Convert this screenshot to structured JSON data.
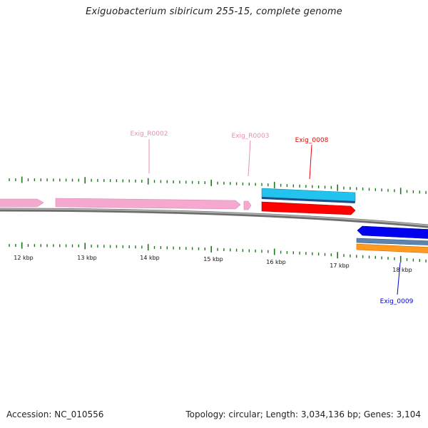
{
  "title": "Exiguobacterium sibiricum 255-15, complete genome",
  "accession": "Accession: NC_010556",
  "summary": "Topology: circular; Length: 3,034,136 bp; Genes: 3,104",
  "colors": {
    "backbone": "#8c8c8c",
    "tick": "#1a7a1a",
    "rna_label": "#e58fb8",
    "rna_fill": "#f6a9cf",
    "cds_red": "#ff0000",
    "cds_cyan": "#22c3ee",
    "cds_blue": "#0000ee",
    "cds_steel": "#5b84b1",
    "cds_orange": "#ff9a1f"
  },
  "scale": {
    "labels": [
      "12 kbp",
      "13 kbp",
      "14 kbp",
      "15 kbp",
      "16 kbp",
      "17 kbp",
      "18 kbp"
    ]
  },
  "gene_labels": [
    {
      "name": "Exig_R0002",
      "color": "#e58fb8"
    },
    {
      "name": "Exig_R0003",
      "color": "#e58fb8"
    },
    {
      "name": "Exig_0008",
      "color": "#ee0000"
    },
    {
      "name": "Exig_0009",
      "color": "#0000cc"
    }
  ]
}
